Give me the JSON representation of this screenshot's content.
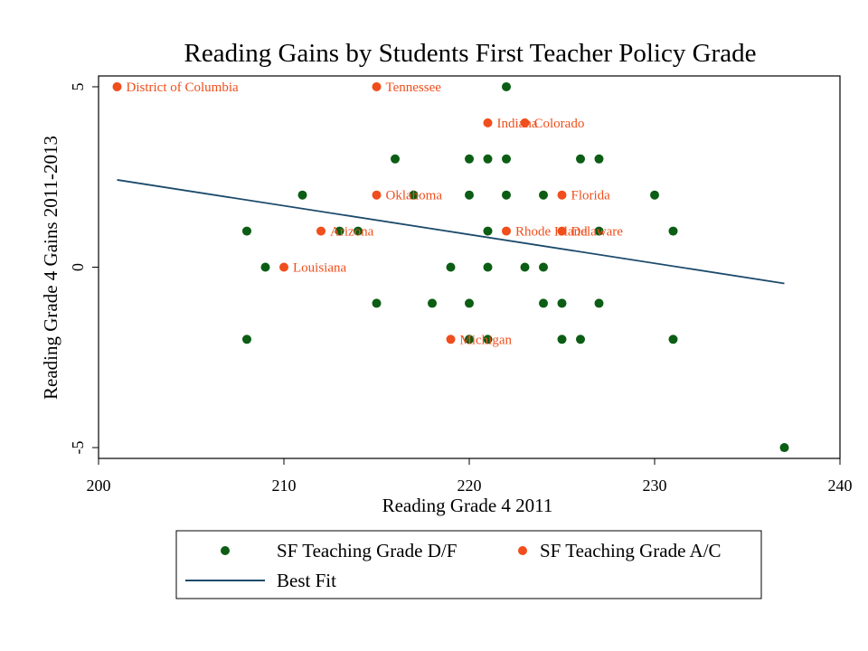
{
  "chart_data": {
    "type": "scatter",
    "title": "Reading Gains by Students First Teacher Policy Grade",
    "xlabel": "Reading Grade 4 2011",
    "ylabel": "Reading Grade 4 Gains 2011-2013",
    "xlim": [
      200,
      240
    ],
    "ylim": [
      -5.3,
      5.3
    ],
    "xticks": [
      200,
      210,
      220,
      230,
      240
    ],
    "yticks": [
      -5,
      0,
      5
    ],
    "grid": false,
    "legend_position": "bottom",
    "colors": {
      "df": "#0b5e14",
      "ac": "#f04e1c",
      "fit": "#1c4b6b"
    },
    "series": [
      {
        "name": "SF Teaching Grade D/F",
        "points": [
          {
            "x": 222,
            "y": 5
          },
          {
            "x": 216,
            "y": 3
          },
          {
            "x": 220,
            "y": 3
          },
          {
            "x": 221,
            "y": 3
          },
          {
            "x": 222,
            "y": 3
          },
          {
            "x": 226,
            "y": 3
          },
          {
            "x": 227,
            "y": 3
          },
          {
            "x": 211,
            "y": 2
          },
          {
            "x": 217,
            "y": 2
          },
          {
            "x": 220,
            "y": 2
          },
          {
            "x": 222,
            "y": 2
          },
          {
            "x": 224,
            "y": 2
          },
          {
            "x": 230,
            "y": 2
          },
          {
            "x": 208,
            "y": 1
          },
          {
            "x": 213,
            "y": 1
          },
          {
            "x": 214,
            "y": 1
          },
          {
            "x": 221,
            "y": 1
          },
          {
            "x": 227,
            "y": 1
          },
          {
            "x": 231,
            "y": 1
          },
          {
            "x": 209,
            "y": 0
          },
          {
            "x": 219,
            "y": 0
          },
          {
            "x": 221,
            "y": 0
          },
          {
            "x": 223,
            "y": 0
          },
          {
            "x": 224,
            "y": 0
          },
          {
            "x": 215,
            "y": -1
          },
          {
            "x": 218,
            "y": -1
          },
          {
            "x": 220,
            "y": -1
          },
          {
            "x": 224,
            "y": -1
          },
          {
            "x": 225,
            "y": -1
          },
          {
            "x": 227,
            "y": -1
          },
          {
            "x": 208,
            "y": -2
          },
          {
            "x": 220,
            "y": -2
          },
          {
            "x": 221,
            "y": -2
          },
          {
            "x": 225,
            "y": -2
          },
          {
            "x": 226,
            "y": -2
          },
          {
            "x": 231,
            "y": -2
          },
          {
            "x": 237,
            "y": -5
          }
        ]
      },
      {
        "name": "SF Teaching Grade A/C",
        "points": [
          {
            "x": 201,
            "y": 5,
            "label": "District of Columbia"
          },
          {
            "x": 215,
            "y": 5,
            "label": "Tennessee"
          },
          {
            "x": 221,
            "y": 4,
            "label": "Indiana"
          },
          {
            "x": 223,
            "y": 4,
            "label": "Colorado"
          },
          {
            "x": 215,
            "y": 2,
            "label": "Oklahoma"
          },
          {
            "x": 225,
            "y": 2,
            "label": "Florida"
          },
          {
            "x": 212,
            "y": 1,
            "label": "Arizona"
          },
          {
            "x": 222,
            "y": 1,
            "label": "Rhode Island"
          },
          {
            "x": 225,
            "y": 1,
            "label": "Delaware"
          },
          {
            "x": 210,
            "y": 0,
            "label": "Louisiana"
          },
          {
            "x": 219,
            "y": -2,
            "label": "Michigan"
          }
        ]
      }
    ],
    "fit_line": {
      "name": "Best Fit",
      "x": [
        201,
        237
      ],
      "y": [
        2.42,
        -0.45
      ]
    }
  }
}
